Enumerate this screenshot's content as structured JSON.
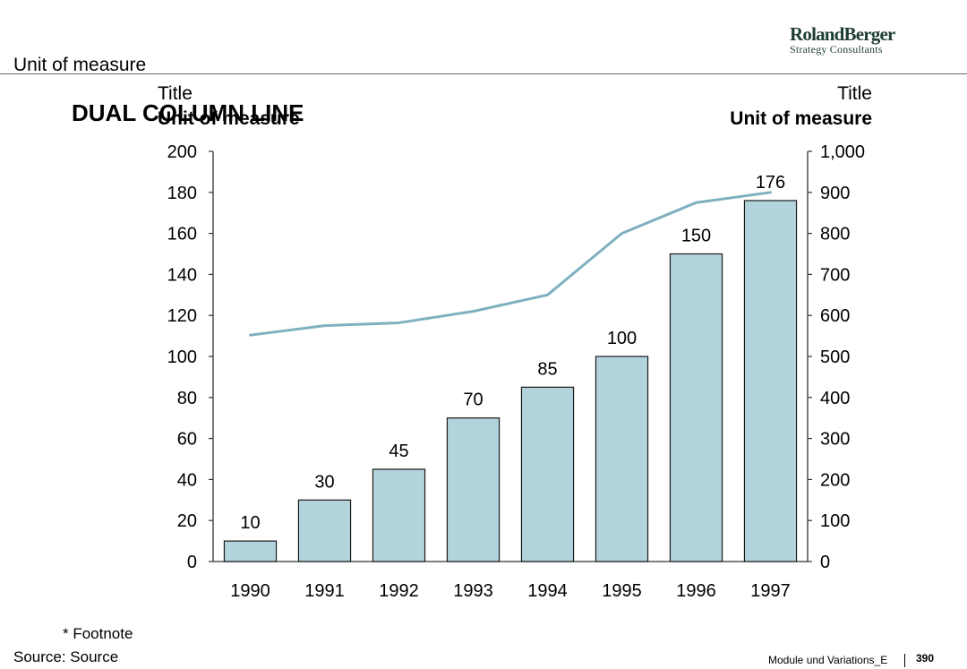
{
  "brand": {
    "name": "RolandBerger",
    "tagline": "Strategy Consultants"
  },
  "header": {
    "unit_label": "Unit of measure"
  },
  "chart_data": {
    "type": "bar+line",
    "heading": "DUAL COLUMN LINE",
    "categories": [
      "1990",
      "1991",
      "1992",
      "1993",
      "1994",
      "1995",
      "1996",
      "1997"
    ],
    "bar_series": {
      "axis": "left",
      "values": [
        10,
        30,
        45,
        70,
        85,
        100,
        150,
        176
      ],
      "data_labels": [
        "10",
        "30",
        "45",
        "70",
        "85",
        "100",
        "150",
        "176"
      ],
      "color": "#b3d3dd"
    },
    "line_series": {
      "axis": "right",
      "values": [
        552,
        575,
        582,
        610,
        650,
        800,
        875,
        900
      ],
      "color": "#7eb0bf"
    },
    "left_axis": {
      "title": "Title",
      "unit": "Unit of measure",
      "range": [
        0,
        200
      ],
      "ticks": [
        "0",
        "20",
        "40",
        "60",
        "80",
        "100",
        "120",
        "140",
        "160",
        "180",
        "200"
      ]
    },
    "right_axis": {
      "title": "Title",
      "unit": "Unit of measure",
      "range": [
        0,
        1000
      ],
      "ticks": [
        "0",
        "100",
        "200",
        "300",
        "400",
        "500",
        "600",
        "700",
        "800",
        "900",
        "1,000"
      ]
    },
    "grid": false,
    "legend": "none"
  },
  "footer": {
    "footnote": "* Footnote",
    "source": "Source: Source",
    "module": "Module und Variations_E",
    "page": "390"
  },
  "colors": {
    "bar_fill": "#b3d3dd",
    "bar_stroke": "#1a1a1a",
    "line": "#7eb0bf",
    "brand": "#1d3d33"
  }
}
